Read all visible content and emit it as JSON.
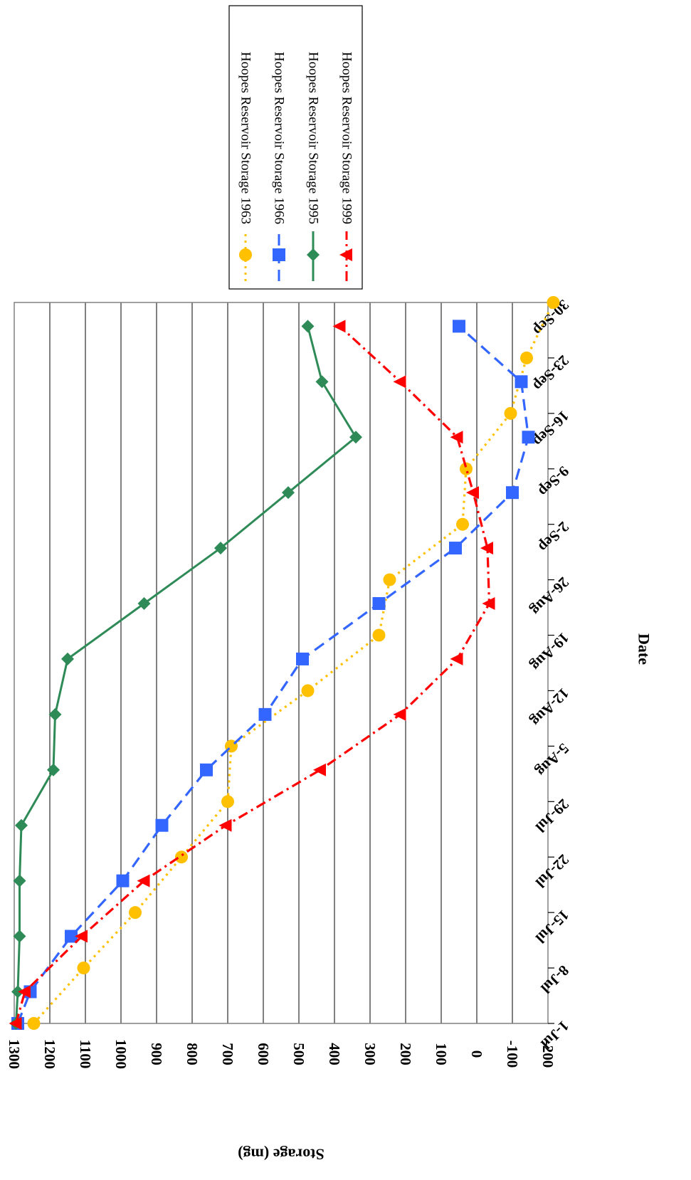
{
  "chart_data": {
    "type": "line",
    "orientation": "rotated 90 degrees clockwise (storage axis runs along the bottom, dates run downward)",
    "xlabel": "Date",
    "ylabel": "Storage (mg)",
    "ylim": [
      -200,
      1300
    ],
    "yticks": [
      "1300",
      "1200",
      "1100",
      "1000",
      "900",
      "800",
      "700",
      "600",
      "500",
      "400",
      "300",
      "200",
      "100",
      "0",
      "-100",
      "-200"
    ],
    "xtick_labels": [
      "1-Jul",
      "8-Jul",
      "15-Jul",
      "22-Jul",
      "29-Jul",
      "5-Aug",
      "12-Aug",
      "19-Aug",
      "26-Aug",
      "2-Sep",
      "9-Sep",
      "16-Sep",
      "23-Sep",
      "30-Sep"
    ],
    "grid": true,
    "legend_position": "top-right (rotated)",
    "series": [
      {
        "name": "Hoopes Reservoir Storage 1963",
        "color": "#FFC000",
        "marker": "circle",
        "line_style": "dotted",
        "points": [
          [
            "1-Jul",
            1245
          ],
          [
            "8-Jul",
            1105
          ],
          [
            "15-Jul",
            960
          ],
          [
            "22-Jul",
            830
          ],
          [
            "29-Jul",
            700
          ],
          [
            "5-Aug",
            690
          ],
          [
            "12-Aug",
            475
          ],
          [
            "19-Aug",
            275
          ],
          [
            "26-Aug",
            245
          ],
          [
            "2-Sep",
            40
          ],
          [
            "9-Sep",
            30
          ],
          [
            "16-Sep",
            -95
          ],
          [
            "23-Sep",
            -140
          ],
          [
            "30-Sep",
            -215
          ]
        ]
      },
      {
        "name": "Hoopes Reservoir Storage 1966",
        "color": "#3366FF",
        "marker": "square",
        "line_style": "dashed",
        "points": [
          [
            "1-Jul",
            1290
          ],
          [
            "5-Jul",
            1255
          ],
          [
            "12-Jul",
            1140
          ],
          [
            "19-Jul",
            995
          ],
          [
            "26-Jul",
            885
          ],
          [
            "2-Aug",
            760
          ],
          [
            "9-Aug",
            595
          ],
          [
            "16-Aug",
            490
          ],
          [
            "23-Aug",
            275
          ],
          [
            "30-Aug",
            60
          ],
          [
            "6-Sep",
            -100
          ],
          [
            "13-Sep",
            -145
          ],
          [
            "20-Sep",
            -125
          ],
          [
            "27-Sep",
            50
          ]
        ]
      },
      {
        "name": "Hoopes Reservoir Storage 1995",
        "color": "#2E8B57",
        "marker": "diamond",
        "line_style": "solid",
        "points": [
          [
            "1-Jul",
            1295
          ],
          [
            "5-Jul",
            1290
          ],
          [
            "12-Jul",
            1285
          ],
          [
            "19-Jul",
            1285
          ],
          [
            "26-Jul",
            1280
          ],
          [
            "2-Aug",
            1190
          ],
          [
            "9-Aug",
            1185
          ],
          [
            "16-Aug",
            1150
          ],
          [
            "23-Aug",
            935
          ],
          [
            "30-Aug",
            720
          ],
          [
            "6-Sep",
            530
          ],
          [
            "13-Sep",
            340
          ],
          [
            "20-Sep",
            435
          ],
          [
            "27-Sep",
            475
          ]
        ]
      },
      {
        "name": "Hoopes Reservoir Storage 1999",
        "color": "#FF0000",
        "marker": "triangle",
        "line_style": "dash-dot",
        "points": [
          [
            "1-Jul",
            1295
          ],
          [
            "5-Jul",
            1270
          ],
          [
            "12-Jul",
            1110
          ],
          [
            "19-Jul",
            935
          ],
          [
            "26-Jul",
            705
          ],
          [
            "2-Aug",
            440
          ],
          [
            "9-Aug",
            215
          ],
          [
            "16-Aug",
            55
          ],
          [
            "23-Aug",
            -35
          ],
          [
            "30-Aug",
            -30
          ],
          [
            "6-Sep",
            10
          ],
          [
            "13-Sep",
            55
          ],
          [
            "20-Sep",
            215
          ],
          [
            "27-Sep",
            385
          ]
        ]
      }
    ]
  }
}
